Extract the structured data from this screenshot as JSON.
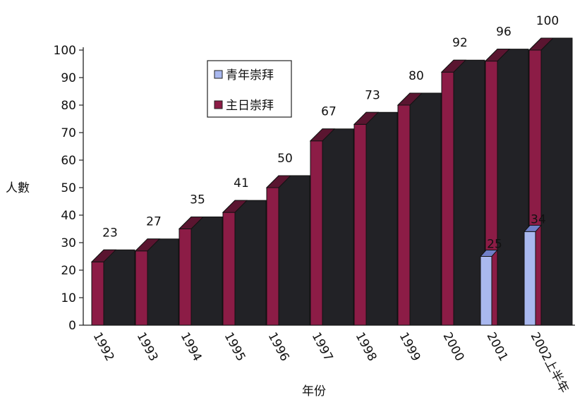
{
  "chart_data": {
    "type": "bar",
    "categories": [
      "1992",
      "1993",
      "1994",
      "1995",
      "1996",
      "1997",
      "1998",
      "1999",
      "2000",
      "2001",
      "2002上半年"
    ],
    "series": [
      {
        "name": "青年崇拜",
        "values": [
          null,
          null,
          null,
          null,
          null,
          null,
          null,
          null,
          null,
          25,
          34
        ],
        "color": "#a9b8ef"
      },
      {
        "name": "主日崇拜",
        "values": [
          23,
          27,
          35,
          41,
          50,
          67,
          73,
          80,
          92,
          96,
          100
        ],
        "color": "#8c1c46"
      }
    ],
    "xlabel": "年份",
    "ylabel": "人數",
    "ylim": [
      0,
      100
    ],
    "yticks": [
      0,
      10,
      20,
      30,
      40,
      50,
      60,
      70,
      80,
      90,
      100
    ],
    "legend": "top-center",
    "grid": false,
    "style": "3d"
  }
}
